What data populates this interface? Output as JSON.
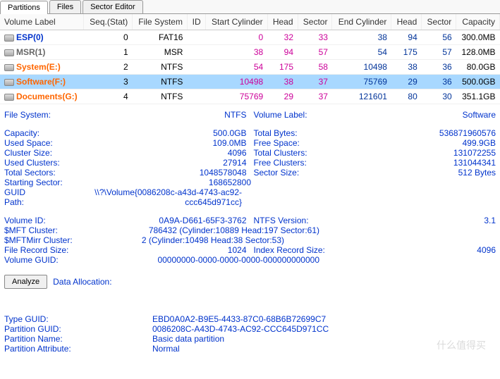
{
  "tabs": {
    "partitions": "Partitions",
    "files": "Files",
    "sector_editor": "Sector Editor"
  },
  "headers": {
    "vol": "Volume Label",
    "seq": "Seq.(Stat)",
    "fs": "File System",
    "id": "ID",
    "sc": "Start Cylinder",
    "hd": "Head",
    "sec": "Sector",
    "ec": "End Cylinder",
    "hd2": "Head",
    "sec2": "Sector",
    "cap": "Capacity"
  },
  "rows": [
    {
      "label": "ESP(0)",
      "color": "#0033cc",
      "seq": "0",
      "fs": "FAT16",
      "id": "",
      "sc": "0",
      "hd": "32",
      "sec": "33",
      "ec": "38",
      "hd2": "94",
      "sec2": "56",
      "cap": "300.0MB",
      "sel": false
    },
    {
      "label": "MSR(1)",
      "color": "#666",
      "seq": "1",
      "fs": "MSR",
      "id": "",
      "sc": "38",
      "hd": "94",
      "sec": "57",
      "ec": "54",
      "hd2": "175",
      "sec2": "57",
      "cap": "128.0MB",
      "sel": false
    },
    {
      "label": "System(E:)",
      "color": "#ff6600",
      "seq": "2",
      "fs": "NTFS",
      "id": "",
      "sc": "54",
      "hd": "175",
      "sec": "58",
      "ec": "10498",
      "hd2": "38",
      "sec2": "36",
      "cap": "80.0GB",
      "sel": false
    },
    {
      "label": "Software(F:)",
      "color": "#ff6600",
      "seq": "3",
      "fs": "NTFS",
      "id": "",
      "sc": "10498",
      "hd": "38",
      "sec": "37",
      "ec": "75769",
      "hd2": "29",
      "sec2": "36",
      "cap": "500.0GB",
      "sel": true
    },
    {
      "label": "Documents(G:)",
      "color": "#ff6600",
      "seq": "4",
      "fs": "NTFS",
      "id": "",
      "sc": "75769",
      "hd": "29",
      "sec": "37",
      "ec": "121601",
      "hd2": "80",
      "sec2": "30",
      "cap": "351.1GB",
      "sel": false
    }
  ],
  "details": {
    "fs_k": "File System:",
    "fs_v": "NTFS",
    "vl_k": "Volume Label:",
    "vl_v": "Software",
    "cap_k": "Capacity:",
    "cap_v": "500.0GB",
    "tb_k": "Total Bytes:",
    "tb_v": "536871960576",
    "us_k": "Used Space:",
    "us_v": "109.0MB",
    "fsp_k": "Free Space:",
    "fsp_v": "499.9GB",
    "cs_k": "Cluster Size:",
    "cs_v": "4096",
    "tc_k": "Total Clusters:",
    "tc_v": "131072255",
    "uc_k": "Used Clusters:",
    "uc_v": "27914",
    "fc_k": "Free Clusters:",
    "fc_v": "131044341",
    "ts_k": "Total Sectors:",
    "ts_v": "1048578048",
    "ss_k": "Sector Size:",
    "ss_v": "512 Bytes",
    "st_k": "Starting Sector:",
    "st_v": "168652800",
    "gp_k": "GUID Path:",
    "gp_v": "\\\\?\\Volume{0086208c-a43d-4743-ac92-ccc645d971cc}",
    "vid_k": "Volume ID:",
    "vid_v": "0A9A-D661-65F3-3762",
    "nv_k": "NTFS Version:",
    "nv_v": "3.1",
    "mft_k": "$MFT Cluster:",
    "mft_v": "786432 (Cylinder:10889 Head:197 Sector:61)",
    "mftm_k": "$MFTMirr Cluster:",
    "mftm_v": "2 (Cylinder:10498 Head:38 Sector:53)",
    "frs_k": "File Record Size:",
    "frs_v": "1024",
    "irs_k": "Index Record Size:",
    "irs_v": "4096",
    "vg_k": "Volume GUID:",
    "vg_v": "00000000-0000-0000-0000-000000000000"
  },
  "analyze": "Analyze",
  "alloc": "Data Allocation:",
  "bottom": {
    "tg_k": "Type GUID:",
    "tg_v": "EBD0A0A2-B9E5-4433-87C0-68B6B72699C7",
    "pg_k": "Partition GUID:",
    "pg_v": "0086208C-A43D-4743-AC92-CCC645D971CC",
    "pn_k": "Partition Name:",
    "pn_v": "Basic data partition",
    "pa_k": "Partition Attribute:",
    "pa_v": "Normal"
  },
  "watermark": "什么值得买",
  "colors": {
    "start": "#cc0099",
    "end": "#003399"
  }
}
